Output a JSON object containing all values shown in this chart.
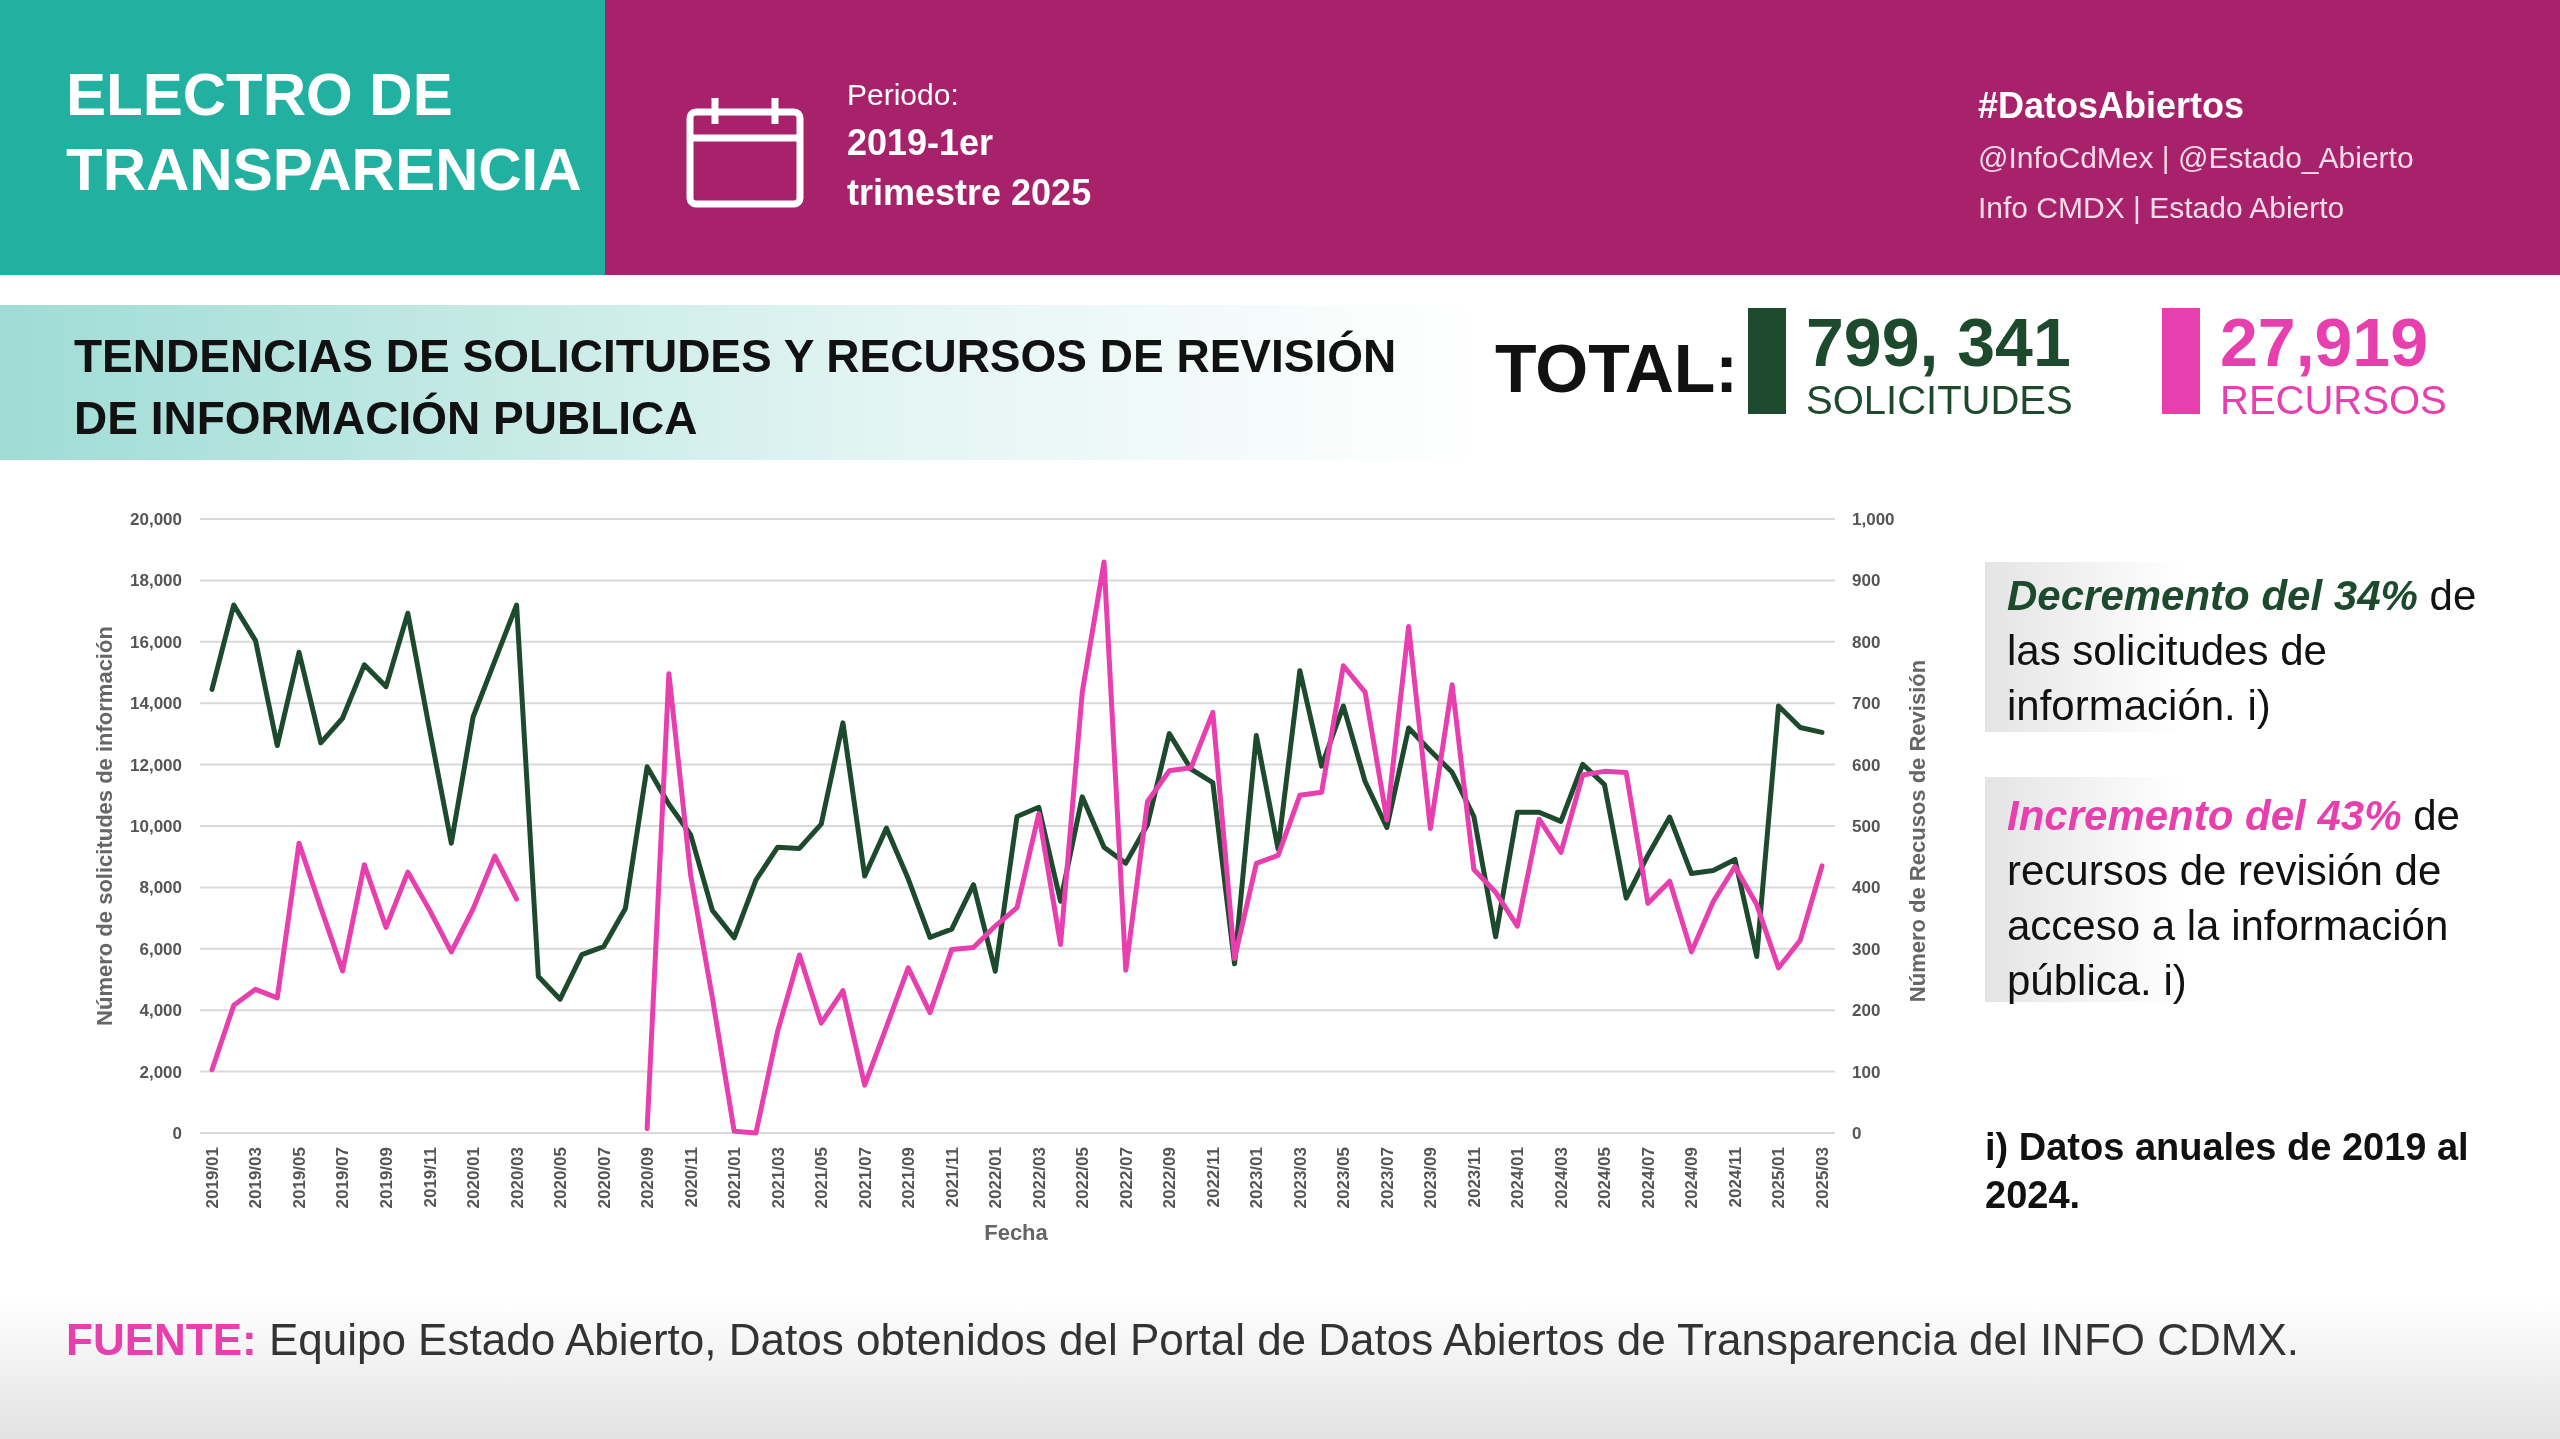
{
  "chart_data": {
    "type": "line",
    "title": "TENDENCIAS DE SOLICITUDES Y RECURSOS DE REVISIÓN DE INFORMACIÓN PUBLICA",
    "xlabel": "Fecha",
    "ylabel": "Número de solicitudes de información",
    "y2label": "Número de Recusos de Revisión",
    "categories": [
      "2019/01",
      null,
      "2019/03",
      null,
      "2019/05",
      null,
      "2019/07",
      null,
      "2019/09",
      null,
      "2019/11",
      null,
      "2020/01",
      null,
      "2020/03",
      null,
      "2020/05",
      null,
      "2020/07",
      null,
      "2020/09",
      null,
      "2020/11",
      null,
      "2021/01",
      null,
      "2021/03",
      null,
      "2021/05",
      null,
      "2021/07",
      null,
      "2021/09",
      null,
      "2021/11",
      null,
      "2022/01",
      null,
      "2022/03",
      null,
      "2022/05",
      null,
      "2022/07",
      null,
      "2022/09",
      null,
      "2022/11",
      null,
      "2023/01",
      null,
      "2023/03",
      null,
      "2023/05",
      null,
      "2023/07",
      null,
      "2023/09",
      null,
      "2023/11",
      null,
      "2024/01",
      null,
      "2024/03",
      null,
      "2024/05",
      null,
      "2024/07",
      null,
      "2024/09",
      null,
      "2024/11",
      null,
      "2025/01",
      null,
      "2025/03"
    ],
    "series": [
      {
        "name": "SOLICITUDES",
        "color": "#1d4a2c",
        "values": [
          14450,
          17200,
          16040,
          12620,
          15660,
          12710,
          13510,
          15250,
          14540,
          16930,
          13140,
          9440,
          13550,
          15380,
          17200,
          5100,
          4360,
          5810,
          6070,
          7310,
          11930,
          10710,
          9720,
          7250,
          6360,
          8240,
          9310,
          9270,
          10060,
          13360,
          8370,
          9930,
          8280,
          6370,
          6640,
          8090,
          5270,
          10310,
          10610,
          7550,
          10950,
          9310,
          8790,
          10050,
          13010,
          11850,
          11410,
          5510,
          12950,
          9250,
          15060,
          11950,
          13910,
          11450,
          9950,
          13190,
          12450,
          11750,
          10310,
          6390,
          10450,
          10450,
          10150,
          12010,
          11350,
          7650,
          9050,
          10290,
          8450,
          8550,
          8910,
          5750,
          13910,
          13210,
          13050
        ]
      },
      {
        "name": "RECURSOS",
        "color": "#e83fae",
        "axis": "y2",
        "values": [
          103,
          208,
          234,
          220,
          472,
          367,
          264,
          437,
          335,
          425,
          363,
          295,
          365,
          451,
          381,
          null,
          null,
          null,
          null,
          null,
          7,
          748,
          420,
          220,
          3,
          0,
          166,
          290,
          179,
          232,
          78,
          173,
          269,
          196,
          299,
          302,
          337,
          367,
          520,
          307,
          718,
          930,
          265,
          540,
          590,
          595,
          685,
          284,
          439,
          452,
          550,
          555,
          761,
          718,
          510,
          825,
          496,
          730,
          429,
          392,
          337,
          511,
          457,
          583,
          589,
          587,
          374,
          410,
          295,
          377,
          434,
          372,
          269,
          314,
          435
        ]
      }
    ],
    "ylim": [
      0,
      20000
    ],
    "yticks": [
      0,
      {
        "value": 2000,
        "label": "2,000"
      },
      {
        "value": 4000,
        "label": "4,000"
      },
      {
        "value": 6000,
        "label": "6,000"
      },
      {
        "value": 8000,
        "label": "8,000"
      },
      {
        "value": 10000,
        "label": "10,000"
      },
      {
        "value": 12000,
        "label": "12,000"
      },
      {
        "value": 14000,
        "label": "14,000"
      },
      {
        "value": 16000,
        "label": "16,000"
      },
      {
        "value": 18000,
        "label": "18,000"
      },
      {
        "value": 20000,
        "label": "20,000"
      }
    ],
    "y2lim": [
      0,
      1000
    ],
    "y2ticks": [
      0,
      100,
      200,
      300,
      400,
      500,
      600,
      700,
      800,
      900,
      {
        "value": 1000,
        "label": "1,000"
      }
    ],
    "grid": "y",
    "legend": "top right",
    "annotations": [
      "ELECTRO DE TRANSPARENCIA",
      "Periodo:",
      "2019-1er trimestre 2025",
      "#DatosAbiertos",
      "@InfoCdMex | @Estado_Abierto",
      "Info CMDX | Estado Abierto",
      "TOTAL:",
      "799, 341",
      "27,919",
      "Decremento del 34% de las solicitudes de información. i)",
      "Incremento del 43% de recursos de revisión de acceso a la información pública. i)",
      "i) Datos anuales de 2019 al 2024.",
      "FUENTE: Equipo Estado Abierto, Datos obtenidos del Portal de Datos Abiertos de Transparencia del INFO CDMX."
    ]
  }
}
